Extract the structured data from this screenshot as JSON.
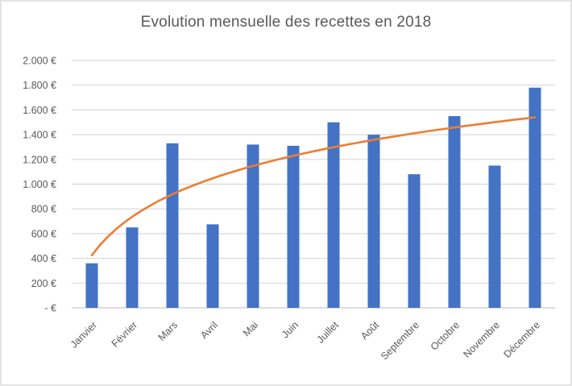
{
  "chart_data": {
    "type": "bar",
    "title": "Evolution mensuelle des recettes en 2018",
    "categories": [
      "Janvier",
      "Février",
      "Mars",
      "Avril",
      "Mai",
      "Juin",
      "Juillet",
      "Août",
      "Septembre",
      "Octobre",
      "Novembre",
      "Décembre"
    ],
    "series": [
      {
        "id": "recettes-bars",
        "type": "bar",
        "color": "#4472C4",
        "values": [
          360,
          650,
          1330,
          675,
          1320,
          1310,
          1500,
          1400,
          1080,
          1550,
          1150,
          1780
        ]
      },
      {
        "id": "trendline",
        "type": "logarithmic-trend",
        "color": "#ED7D31",
        "values": [
          425,
          735,
          920,
          1045,
          1145,
          1230,
          1300,
          1360,
          1410,
          1455,
          1500,
          1540
        ]
      }
    ],
    "y_axis": {
      "min": 0,
      "max": 2000,
      "tick_step": 200,
      "ticks": [
        {
          "label": "2.000 €",
          "value": 2000
        },
        {
          "label": "1.800 €",
          "value": 1800
        },
        {
          "label": "1.600 €",
          "value": 1600
        },
        {
          "label": "1.400 €",
          "value": 1400
        },
        {
          "label": "1.200 €",
          "value": 1200
        },
        {
          "label": "1.000 €",
          "value": 1000
        },
        {
          "label": "800 €",
          "value": 800
        },
        {
          "label": "600 €",
          "value": 600
        },
        {
          "label": "400 €",
          "value": 400
        },
        {
          "label": "200 €",
          "value": 200
        },
        {
          "label": "-    €",
          "value": 0
        }
      ]
    },
    "x_axis": {
      "label_rotation_deg": -45
    },
    "grid": true,
    "legend": "none",
    "colors": {
      "bar": "#4472C4",
      "trend": "#ED7D31",
      "gridline": "#D9D9D9",
      "axis_line": "#C9C9C9",
      "axis_text": "#595959",
      "title_text": "#595959",
      "frame_border": "#E3E3E3"
    }
  }
}
